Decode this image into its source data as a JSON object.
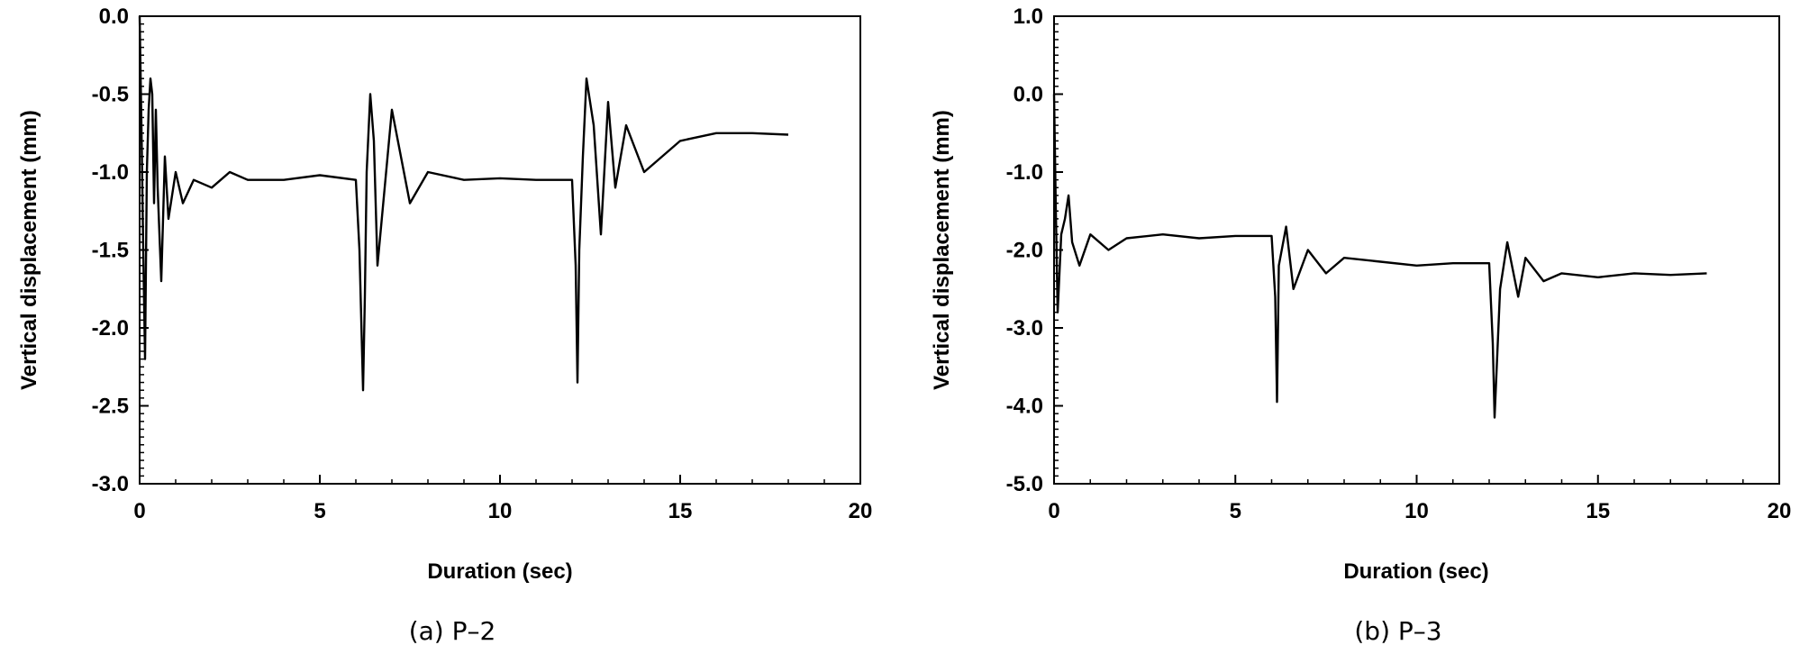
{
  "chart_data": [
    {
      "type": "line",
      "caption": "(a)  P–2",
      "xlabel": "Duration (sec)",
      "ylabel": "Vertical displacement (mm)",
      "xlim": [
        0,
        20
      ],
      "ylim": [
        -3.0,
        0.0
      ],
      "xticks": [
        "0",
        "5",
        "10",
        "15",
        "20"
      ],
      "yticks": [
        "0.0",
        "-0.5",
        "-1.0",
        "-1.5",
        "-2.0",
        "-2.5",
        "-3.0"
      ],
      "grid": false,
      "legend": "none",
      "series": [
        {
          "x": [
            0,
            0.05,
            0.1,
            0.15,
            0.2,
            0.25,
            0.3,
            0.35,
            0.4,
            0.45,
            0.5,
            0.6,
            0.7,
            0.8,
            1.0,
            1.2,
            1.5,
            2.0,
            2.5,
            3.0,
            4.0,
            5.0,
            6.0,
            6.1,
            6.2,
            6.25,
            6.3,
            6.4,
            6.5,
            6.6,
            6.8,
            7.0,
            7.5,
            8.0,
            9.0,
            10.0,
            11.0,
            12.0,
            12.1,
            12.15,
            12.2,
            12.3,
            12.4,
            12.6,
            12.8,
            13.0,
            13.2,
            13.5,
            14.0,
            15.0,
            16.0,
            17.0,
            18.0
          ],
          "y": [
            0.0,
            -0.7,
            -1.5,
            -2.2,
            -1.0,
            -0.6,
            -0.4,
            -0.5,
            -1.2,
            -0.6,
            -1.1,
            -1.7,
            -0.9,
            -1.3,
            -1.0,
            -1.2,
            -1.05,
            -1.1,
            -1.0,
            -1.05,
            -1.05,
            -1.02,
            -1.05,
            -1.5,
            -2.4,
            -1.8,
            -1.0,
            -0.5,
            -0.8,
            -1.6,
            -1.1,
            -0.6,
            -1.2,
            -1.0,
            -1.05,
            -1.04,
            -1.05,
            -1.05,
            -1.6,
            -2.35,
            -1.5,
            -0.9,
            -0.4,
            -0.7,
            -1.4,
            -0.55,
            -1.1,
            -0.7,
            -1.0,
            -0.8,
            -0.75,
            -0.75,
            -0.76
          ]
        }
      ]
    },
    {
      "type": "line",
      "caption": "(b)  P–3",
      "xlabel": "Duration (sec)",
      "ylabel": "Vertical displacement (mm)",
      "xlim": [
        0,
        20
      ],
      "ylim": [
        -5.0,
        1.0
      ],
      "xticks": [
        "0",
        "5",
        "10",
        "15",
        "20"
      ],
      "yticks": [
        "1.0",
        "0.0",
        "-1.0",
        "-2.0",
        "-3.0",
        "-4.0",
        "-5.0"
      ],
      "grid": false,
      "legend": "none",
      "series": [
        {
          "x": [
            0,
            0.05,
            0.1,
            0.15,
            0.2,
            0.3,
            0.4,
            0.5,
            0.7,
            1.0,
            1.5,
            2.0,
            3.0,
            4.0,
            5.0,
            6.0,
            6.1,
            6.15,
            6.2,
            6.4,
            6.6,
            7.0,
            7.5,
            8.0,
            9.0,
            10.0,
            11.0,
            12.0,
            12.1,
            12.15,
            12.3,
            12.5,
            12.8,
            13.0,
            13.5,
            14.0,
            15.0,
            16.0,
            17.0,
            18.0
          ],
          "y": [
            0.0,
            -1.5,
            -2.8,
            -2.3,
            -1.8,
            -1.6,
            -1.3,
            -1.9,
            -2.2,
            -1.8,
            -2.0,
            -1.85,
            -1.8,
            -1.85,
            -1.82,
            -1.82,
            -2.6,
            -3.95,
            -2.2,
            -1.7,
            -2.5,
            -2.0,
            -2.3,
            -2.1,
            -2.15,
            -2.2,
            -2.17,
            -2.17,
            -3.2,
            -4.15,
            -2.5,
            -1.9,
            -2.6,
            -2.1,
            -2.4,
            -2.3,
            -2.35,
            -2.3,
            -2.32,
            -2.3
          ]
        }
      ]
    }
  ]
}
